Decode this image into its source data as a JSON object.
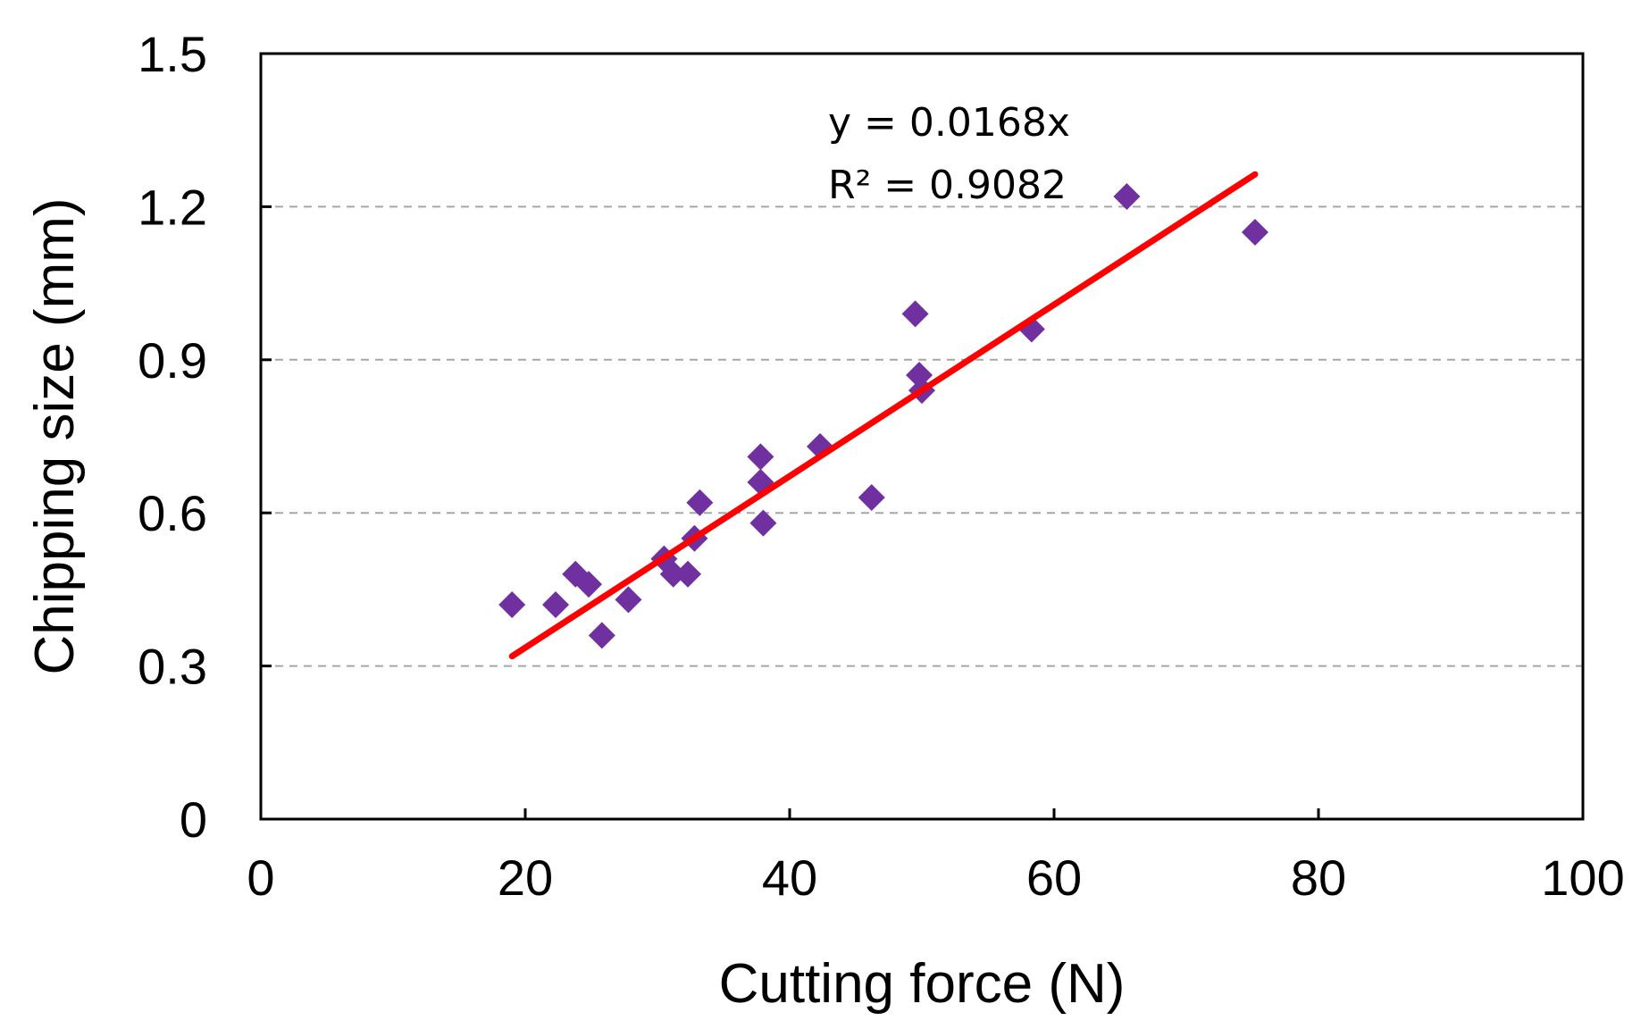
{
  "chart_data": {
    "type": "scatter",
    "xlabel": "Cutting force (N)",
    "ylabel": "Chipping size (mm)",
    "xlim": [
      0,
      100
    ],
    "ylim": [
      0,
      1.5
    ],
    "x_ticks": [
      0,
      20,
      40,
      60,
      80,
      100
    ],
    "x_tick_labels": [
      "0",
      "20",
      "40",
      "60",
      "80",
      "100"
    ],
    "y_ticks": [
      0,
      0.3,
      0.6,
      0.9,
      1.2,
      1.5
    ],
    "y_tick_labels": [
      "0",
      "0.3",
      "0.6",
      "0.9",
      "1.2",
      "1.5"
    ],
    "grid": "horizontal dashed",
    "legend": "none",
    "colors": {
      "points": "#7030A0",
      "trendline": "#FF0000",
      "grid": "#A6A6A6",
      "axes": "#000000"
    },
    "series": [
      {
        "marker": "diamond",
        "x": [
          19,
          22.3,
          23.8,
          24.8,
          25.8,
          27.8,
          30.5,
          31.2,
          32.3,
          32.8,
          33.2,
          37.8,
          37.8,
          38,
          42.3,
          46.2,
          49.5,
          49.8,
          50,
          58.3,
          65.5,
          75.2
        ],
        "y": [
          0.42,
          0.42,
          0.48,
          0.46,
          0.36,
          0.43,
          0.51,
          0.48,
          0.48,
          0.55,
          0.62,
          0.71,
          0.66,
          0.58,
          0.73,
          0.63,
          0.99,
          0.87,
          0.84,
          0.96,
          1.22,
          1.15
        ]
      }
    ],
    "trendline": {
      "slope": 0.0168,
      "intercept": 0,
      "x_range": [
        19,
        75.2
      ]
    },
    "annotations": [
      "y = 0.0168x",
      "R² = 0.9082"
    ]
  }
}
